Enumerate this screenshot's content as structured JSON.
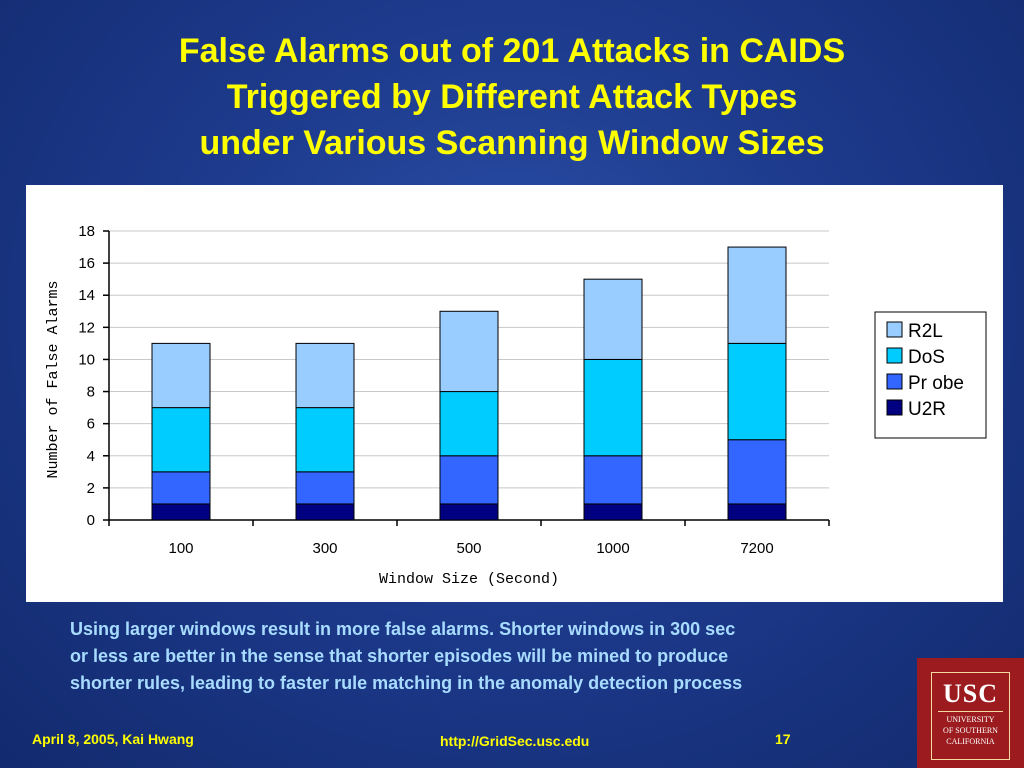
{
  "slide": {
    "title_lines": [
      "False Alarms out of 201 Attacks in CAIDS",
      "Triggered by Different Attack Types",
      "under Various Scanning Window Sizes"
    ],
    "caption_lines": [
      "Using larger windows result in more false alarms. Shorter windows in  300 sec",
      "or less are better in the sense that shorter episodes will be mined to produce",
      "shorter rules,  leading to faster rule matching in the anomaly detection process"
    ],
    "footer": {
      "date_author": "April 8, 2005,  Kai Hwang",
      "url": "http://GridSec.usc.edu",
      "page_number": "17"
    },
    "logo": {
      "abbrev": "USC",
      "line1": "UNIVERSITY",
      "line2": "OF SOUTHERN",
      "line3": "CALIFORNIA"
    }
  },
  "colors": {
    "title": "#ffff00",
    "caption": "#a8dcff",
    "footer": "#ffff00",
    "background": "#1d3a8c",
    "u2r": "#000080",
    "probe": "#3366ff",
    "dos": "#00ccff",
    "r2l": "#99ccff"
  },
  "chart_data": {
    "type": "bar",
    "stacked": true,
    "categories": [
      "100",
      "300",
      "500",
      "1000",
      "7200"
    ],
    "series": [
      {
        "name": "U2R",
        "values": [
          1,
          1,
          1,
          1,
          1
        ],
        "color": "#000080"
      },
      {
        "name": "Pr obe",
        "values": [
          2,
          2,
          3,
          3,
          4
        ],
        "color": "#3366ff"
      },
      {
        "name": "DoS",
        "values": [
          4,
          4,
          4,
          6,
          6
        ],
        "color": "#00ccff"
      },
      {
        "name": "R2L",
        "values": [
          4,
          4,
          5,
          5,
          6
        ],
        "color": "#99ccff"
      }
    ],
    "legend_order": [
      "R2L",
      "DoS",
      "Pr obe",
      "U2R"
    ],
    "xlabel": "Window Size (Second)",
    "ylabel": "Number of False Alarms",
    "ylim": [
      0,
      18
    ],
    "yticks": [
      0,
      2,
      4,
      6,
      8,
      10,
      12,
      14,
      16,
      18
    ],
    "grid": true,
    "legend_position": "right"
  }
}
